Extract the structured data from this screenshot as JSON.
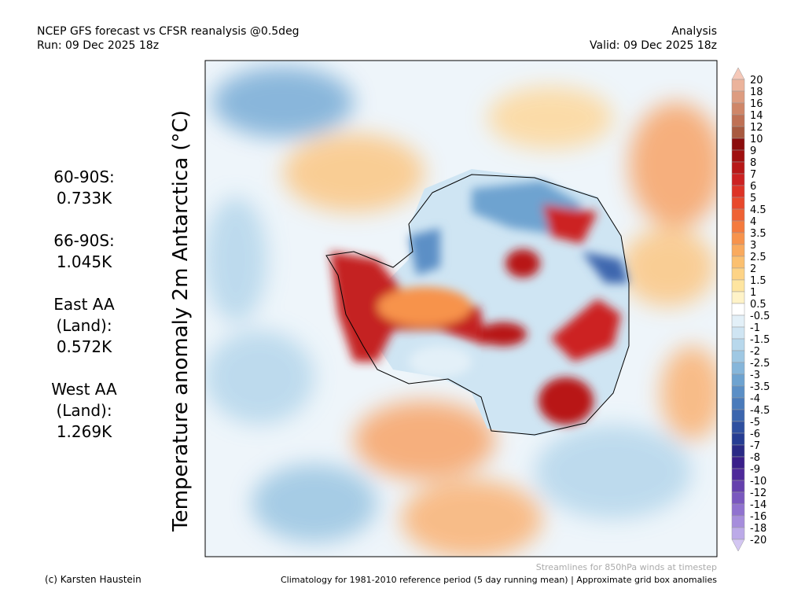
{
  "header": {
    "title": "NCEP GFS forecast vs CFSR reanalysis @0.5deg",
    "run": "Run: 09 Dec 2025 18z",
    "kind": "Analysis",
    "valid": "Valid: 09 Dec 2025 18z"
  },
  "axis_label": "Temperature anomaly 2m Antarctica (°C)",
  "stats": [
    [
      "60-90S:",
      "0.733K"
    ],
    [
      "66-90S:",
      "1.045K"
    ],
    [
      "East AA",
      "(Land):",
      "0.572K"
    ],
    [
      "West AA",
      "(Land):",
      "1.269K"
    ]
  ],
  "colorbar": {
    "labels": [
      "20",
      "18",
      "16",
      "14",
      "12",
      "10",
      "9",
      "8",
      "7",
      "6",
      "5",
      "4.5",
      "4",
      "3.5",
      "3",
      "2.5",
      "2",
      "1.5",
      "1",
      "0.5",
      "-0.5",
      "-1",
      "-1.5",
      "-2",
      "-2.5",
      "-3",
      "-3.5",
      "-4",
      "-4.5",
      "-5",
      "-6",
      "-7",
      "-8",
      "-9",
      "-10",
      "-12",
      "-14",
      "-16",
      "-18",
      "-20"
    ],
    "colors": [
      "#f5c8b8",
      "#ebb39b",
      "#dd9c80",
      "#cf8668",
      "#bf7155",
      "#a85a40",
      "#8b0d0d",
      "#a01010",
      "#b81818",
      "#cc2222",
      "#dd3326",
      "#e8492c",
      "#ef6234",
      "#f47a3e",
      "#f7934c",
      "#f9aa5e",
      "#fbc070",
      "#fdd386",
      "#fee5a0",
      "#fff3c8",
      "#ffffff",
      "#e3f0f8",
      "#cfe5f3",
      "#b8d8ec",
      "#9fc8e3",
      "#86b6da",
      "#6ea3d0",
      "#5b8fc6",
      "#4a7bbb",
      "#3c66ae",
      "#2f50a0",
      "#263d93",
      "#2a2a86",
      "#3a1f8a",
      "#4f2a9a",
      "#6540ad",
      "#7a58bf",
      "#9072cf",
      "#a68ddc",
      "#bcaae8",
      "#d3c6f2"
    ]
  },
  "footer": {
    "credit": "(c) Karsten Haustein",
    "streamlines": "Streamlines for 850hPa winds at timestep",
    "climatology": "Climatology for 1981-2010 reference period (5 day running mean) | Approximate grid box anomalies"
  }
}
